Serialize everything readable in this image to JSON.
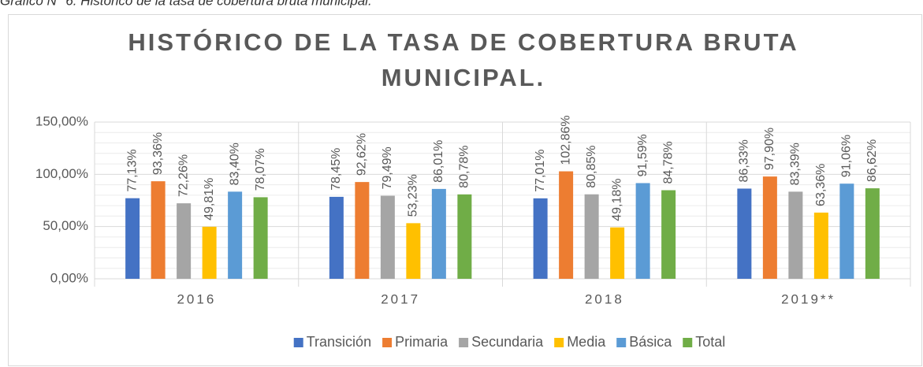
{
  "chart_data": {
    "type": "bar",
    "caption": "Gráfico N° 6. Histórico de la tasa de cobertura bruta municipal.",
    "title": [
      "HISTÓRICO DE LA TASA DE COBERTURA BRUTA",
      "MUNICIPAL."
    ],
    "categories": [
      "2016",
      "2017",
      "2018",
      "2019**"
    ],
    "series": [
      {
        "name": "Transición",
        "color": "#4472c4",
        "values": [
          77.13,
          78.45,
          77.01,
          86.33
        ],
        "value_labels": [
          "77,13%",
          "78,45%",
          "77,01%",
          "86,33%"
        ]
      },
      {
        "name": "Primaria",
        "color": "#ed7d31",
        "values": [
          93.36,
          92.62,
          102.86,
          97.9
        ],
        "value_labels": [
          "93,36%",
          "92,62%",
          "102,86%",
          "97,90%"
        ]
      },
      {
        "name": "Secundaria",
        "color": "#a5a5a5",
        "values": [
          72.26,
          79.49,
          80.85,
          83.39
        ],
        "value_labels": [
          "72,26%",
          "79,49%",
          "80,85%",
          "83,39%"
        ]
      },
      {
        "name": "Media",
        "color": "#ffc000",
        "values": [
          49.81,
          53.23,
          49.18,
          63.36
        ],
        "value_labels": [
          "49,81%",
          "53,23%",
          "49,18%",
          "63,36%"
        ]
      },
      {
        "name": "Básica",
        "color": "#5b9bd5",
        "values": [
          83.4,
          86.01,
          91.59,
          91.06
        ],
        "value_labels": [
          "83,40%",
          "86,01%",
          "91,59%",
          "91,06%"
        ]
      },
      {
        "name": "Total",
        "color": "#70ad47",
        "values": [
          78.07,
          80.78,
          84.78,
          86.62
        ],
        "value_labels": [
          "78,07%",
          "80,78%",
          "84,78%",
          "86,62%"
        ]
      }
    ],
    "ylim": [
      0,
      150
    ],
    "yticks": [
      {
        "value": 0,
        "label": "0,00%"
      },
      {
        "value": 50,
        "label": "50,00%"
      },
      {
        "value": 100,
        "label": "100,00%"
      },
      {
        "value": 150,
        "label": "150,00%"
      }
    ],
    "minor_yticks": [
      10,
      20,
      30,
      40,
      60,
      70,
      80,
      90,
      110,
      120,
      130,
      140
    ],
    "grid": true,
    "legend": "bottom"
  }
}
